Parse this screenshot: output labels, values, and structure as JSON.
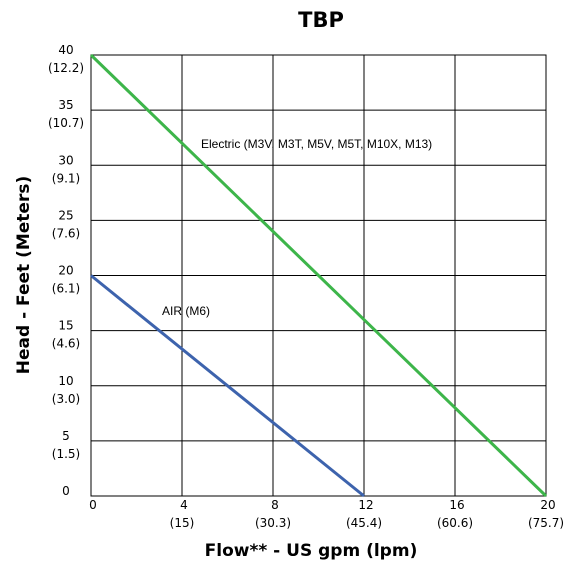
{
  "chart_data": {
    "type": "line",
    "title": "TBP",
    "xlabel": "Flow** - US gpm (lpm)",
    "ylabel": "Head - Feet (Meters)",
    "xlim": [
      0,
      20
    ],
    "ylim": [
      0,
      40
    ],
    "x_ticks": [
      {
        "value": 0,
        "label": "0",
        "sublabel": ""
      },
      {
        "value": 4,
        "label": "4",
        "sublabel": "(15)"
      },
      {
        "value": 8,
        "label": "8",
        "sublabel": "(30.3)"
      },
      {
        "value": 12,
        "label": "12",
        "sublabel": "(45.4)"
      },
      {
        "value": 16,
        "label": "16",
        "sublabel": "(60.6)"
      },
      {
        "value": 20,
        "label": "20",
        "sublabel": "(75.7)"
      }
    ],
    "y_ticks": [
      {
        "value": 0,
        "label": "0",
        "sublabel": ""
      },
      {
        "value": 5,
        "label": "5",
        "sublabel": "(1.5)"
      },
      {
        "value": 10,
        "label": "10",
        "sublabel": "(3.0)"
      },
      {
        "value": 15,
        "label": "15",
        "sublabel": "(4.6)"
      },
      {
        "value": 20,
        "label": "20",
        "sublabel": "(6.1)"
      },
      {
        "value": 25,
        "label": "25",
        "sublabel": "(7.6)"
      },
      {
        "value": 30,
        "label": "30",
        "sublabel": "(9.1)"
      },
      {
        "value": 35,
        "label": "35",
        "sublabel": "(10.7)"
      },
      {
        "value": 40,
        "label": "40",
        "sublabel": "(12.2)"
      }
    ],
    "grid": true,
    "series": [
      {
        "name": "Electric (M3V, M3T, M5V, M5T, M10X, M13)",
        "color": "#3db54a",
        "x": [
          0,
          20
        ],
        "y": [
          40,
          0
        ]
      },
      {
        "name": "AIR (M6)",
        "color": "#3d63ad",
        "x": [
          0,
          12
        ],
        "y": [
          20,
          0
        ]
      }
    ]
  }
}
